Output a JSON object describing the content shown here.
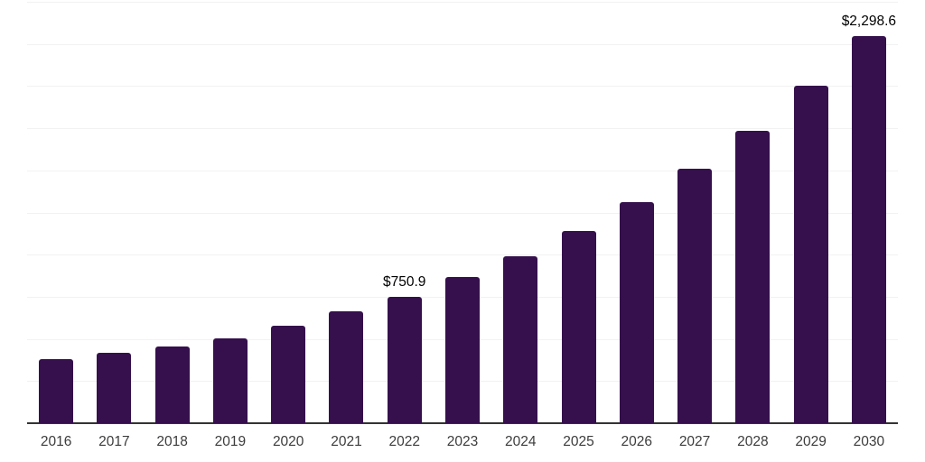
{
  "colors": {
    "bar": "#35104C",
    "gridline": "#f2f2f2",
    "axis": "#333333",
    "xlabel": "#3c3c3c",
    "vlabel": "#000000",
    "background": "#ffffff"
  },
  "chart_data": {
    "type": "bar",
    "title": "",
    "xlabel": "",
    "ylabel": "",
    "categories": [
      "2016",
      "2017",
      "2018",
      "2019",
      "2020",
      "2021",
      "2022",
      "2023",
      "2024",
      "2025",
      "2026",
      "2027",
      "2028",
      "2029",
      "2030"
    ],
    "values": [
      380,
      417,
      457,
      504,
      580,
      664,
      750.9,
      866,
      993,
      1142,
      1310,
      1508,
      1732,
      2000,
      2298.6
    ],
    "point_labels": [
      null,
      null,
      null,
      null,
      null,
      null,
      "$750.9",
      null,
      null,
      null,
      null,
      null,
      null,
      null,
      "$2,298.6"
    ],
    "ylim": [
      0,
      2500
    ],
    "gridline_interval": 250,
    "grid": "horizontal-only",
    "legend": "none",
    "y_axis_tick_labels": "none",
    "unit_hint": "USD (labels shown with $ prefix)"
  }
}
